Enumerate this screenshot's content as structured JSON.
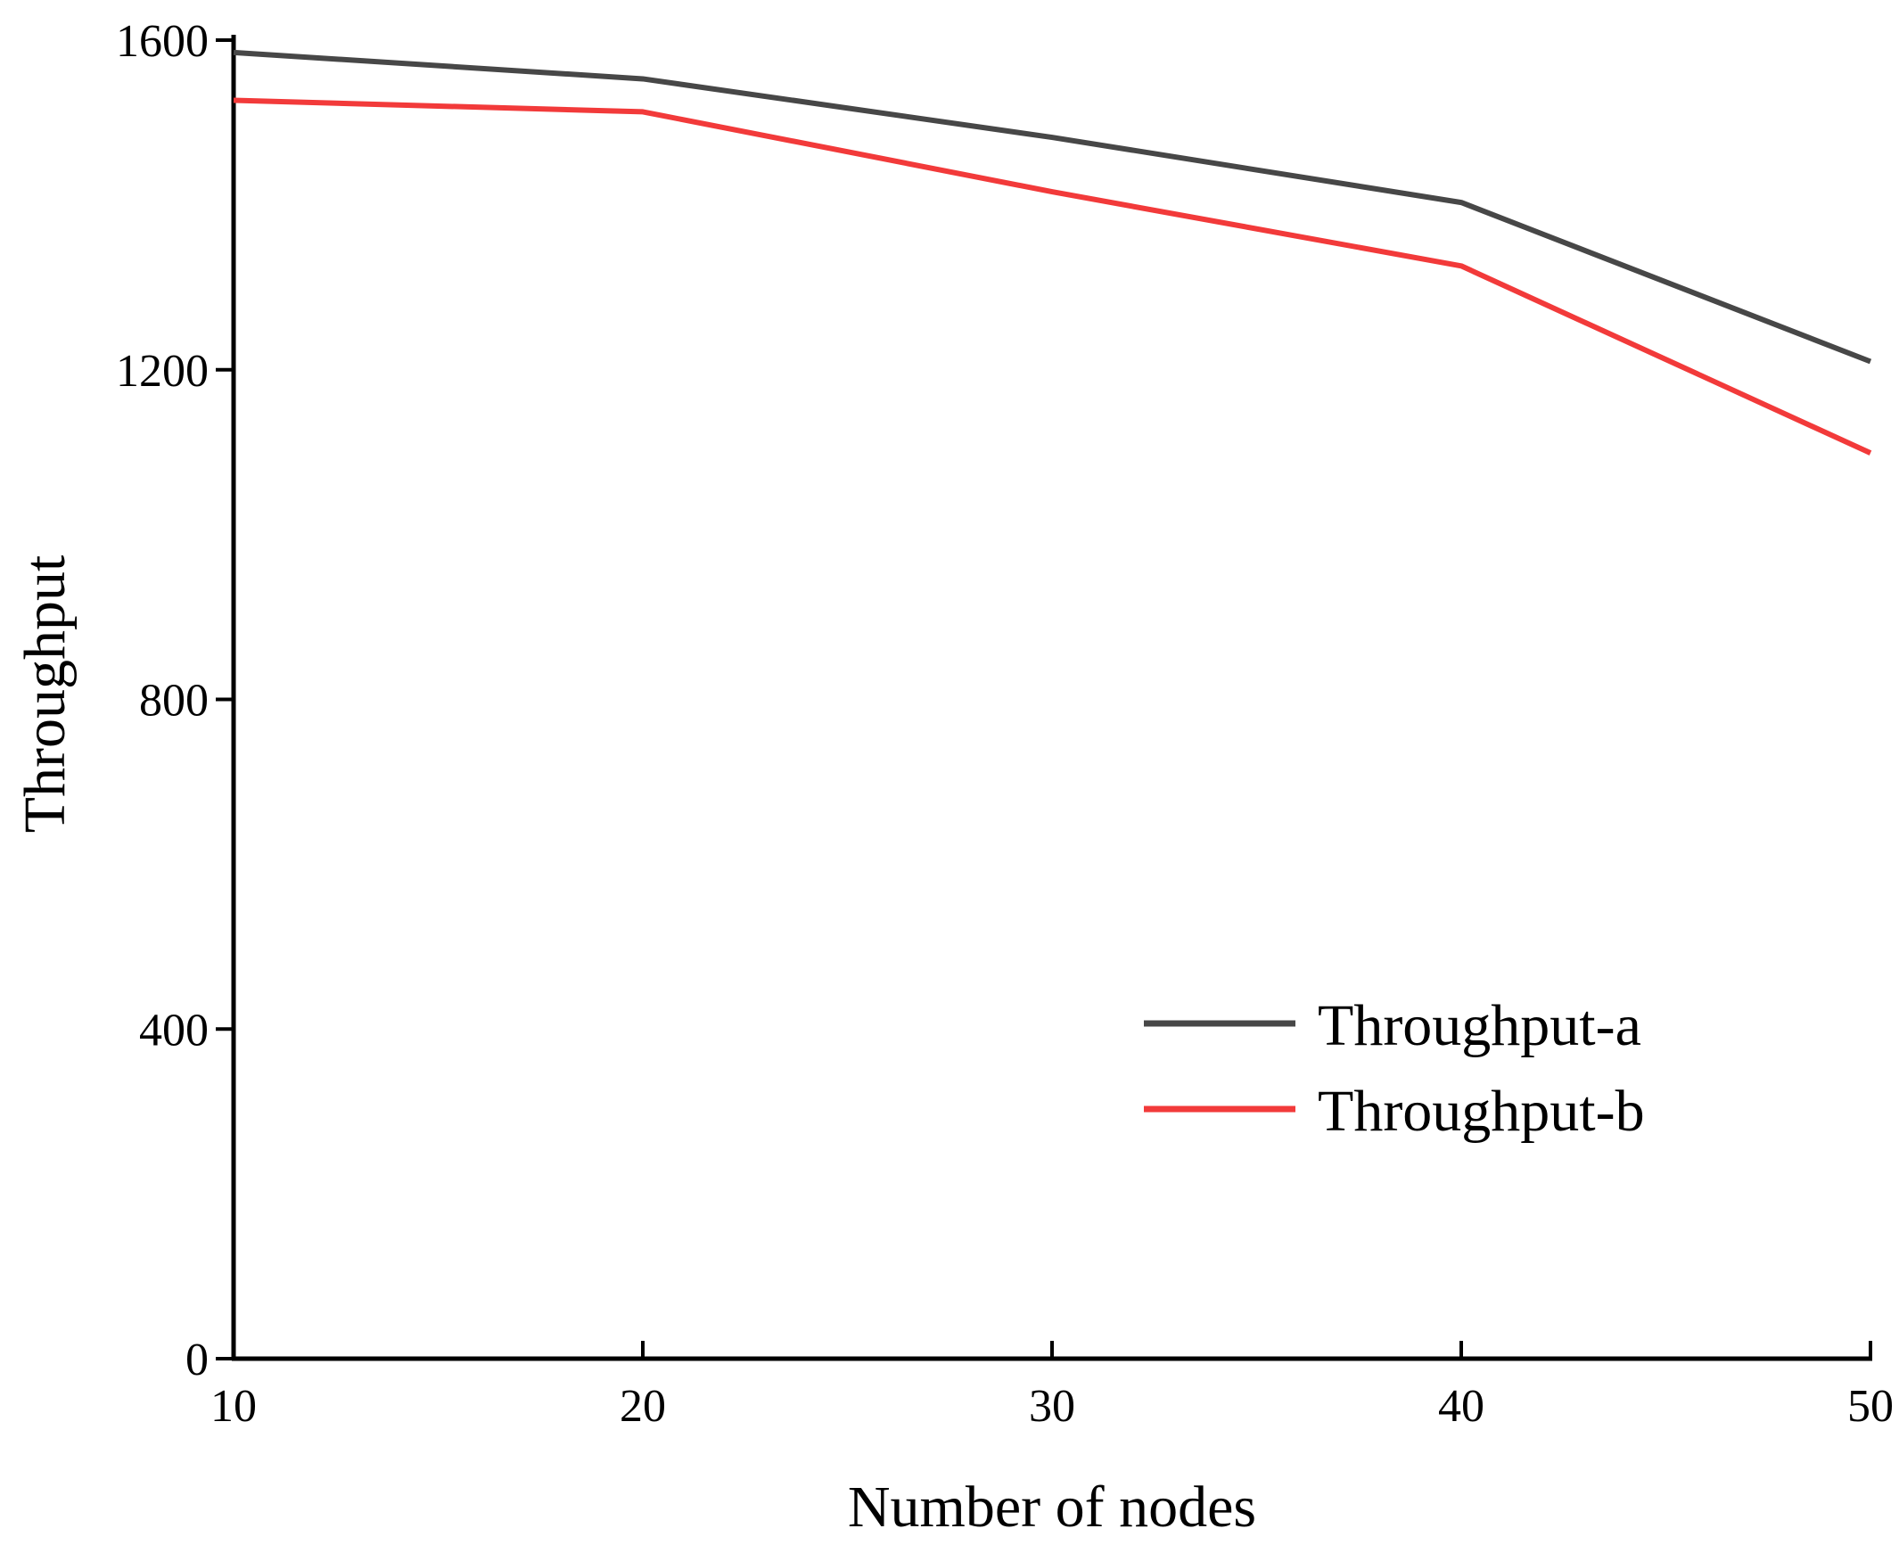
{
  "chart_data": {
    "type": "line",
    "title": "",
    "xlabel": "Number of nodes",
    "ylabel": "Throughput",
    "x": [
      10,
      20,
      30,
      40,
      50
    ],
    "xticks": [
      10,
      20,
      30,
      40,
      50
    ],
    "yticks": [
      0,
      400,
      800,
      1200,
      1600
    ],
    "xlim": [
      10,
      50
    ],
    "ylim": [
      0,
      1600
    ],
    "grid": false,
    "legend_position": "bottom-right",
    "series": [
      {
        "name": "Throughput-a",
        "color": "#474747",
        "values": [
          1585,
          1553,
          1482,
          1403,
          1210
        ]
      },
      {
        "name": "Throughput-b",
        "color": "#f23a3a",
        "values": [
          1527,
          1513,
          1416,
          1326,
          1099
        ]
      }
    ]
  }
}
